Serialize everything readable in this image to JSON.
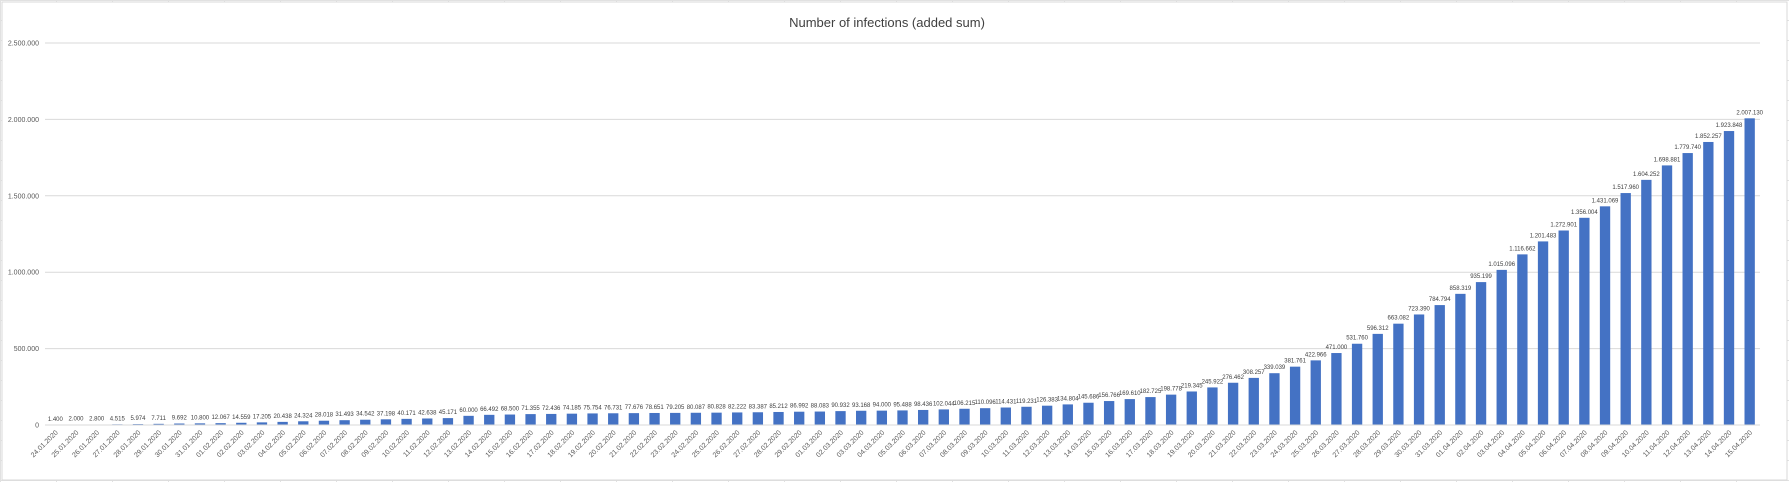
{
  "chart_data": {
    "type": "bar",
    "title": "Number of infections (added sum)",
    "xlabel": "",
    "ylabel": "",
    "ylim": [
      0,
      2500000
    ],
    "y_ticks": [
      0,
      500000,
      1000000,
      1500000,
      2000000,
      2500000
    ],
    "y_tick_labels": [
      "0",
      "500.000",
      "1.000.000",
      "1.500.000",
      "2.000.000",
      "2.500.000"
    ],
    "grid": true,
    "legend": "none",
    "bar_color": "#4472c4",
    "categories": [
      "24.01.2020",
      "25.01.2020",
      "26.01.2020",
      "27.01.2020",
      "28.01.2020",
      "29.01.2020",
      "30.01.2020",
      "31.01.2020",
      "01.02.2020",
      "02.02.2020",
      "03.02.2020",
      "04.02.2020",
      "05.02.2020",
      "06.02.2020",
      "07.02.2020",
      "08.02.2020",
      "09.02.2020",
      "10.02.2020",
      "11.02.2020",
      "12.02.2020",
      "13.02.2020",
      "14.02.2020",
      "15.02.2020",
      "16.02.2020",
      "17.02.2020",
      "18.02.2020",
      "19.02.2020",
      "20.02.2020",
      "21.02.2020",
      "22.02.2020",
      "23.02.2020",
      "24.02.2020",
      "25.02.2020",
      "26.02.2020",
      "27.02.2020",
      "28.02.2020",
      "29.02.2020",
      "01.03.2020",
      "02.03.2020",
      "03.03.2020",
      "04.03.2020",
      "05.03.2020",
      "06.03.2020",
      "07.03.2020",
      "08.03.2020",
      "09.03.2020",
      "10.03.2020",
      "11.03.2020",
      "12.03.2020",
      "13.03.2020",
      "14.03.2020",
      "15.03.2020",
      "16.03.2020",
      "17.03.2020",
      "18.03.2020",
      "19.03.2020",
      "20.03.2020",
      "21.03.2020",
      "22.03.2020",
      "23.03.2020",
      "24.03.2020",
      "25.03.2020",
      "26.03.2020",
      "27.03.2020",
      "28.03.2020",
      "29.03.2020",
      "30.03.2020",
      "31.03.2020",
      "01.04.2020",
      "02.04.2020",
      "03.04.2020",
      "04.04.2020",
      "05.04.2020",
      "06.04.2020",
      "07.04.2020",
      "08.04.2020",
      "09.04.2020",
      "10.04.2020",
      "11.04.2020",
      "12.04.2020",
      "13.04.2020",
      "14.04.2020",
      "15.04.2020"
    ],
    "values": [
      1400,
      2000,
      2800,
      4515,
      5974,
      7711,
      9692,
      10800,
      12067,
      14559,
      17205,
      20438,
      24324,
      28018,
      31493,
      34542,
      37198,
      40171,
      42638,
      45171,
      60000,
      66492,
      68500,
      71355,
      72436,
      74185,
      75754,
      76731,
      77676,
      78651,
      79205,
      80087,
      80828,
      82222,
      83387,
      85212,
      86992,
      88083,
      90932,
      93168,
      94000,
      95488,
      98436,
      102044,
      106215,
      110096,
      114431,
      119231,
      126383,
      134804,
      145686,
      156766,
      169610,
      182725,
      198778,
      219345,
      245922,
      276462,
      308257,
      339039,
      381761,
      422966,
      471000,
      531760,
      596312,
      663082,
      723390,
      784794,
      858319,
      935199,
      1015096,
      1116662,
      1201483,
      1272901,
      1356004,
      1431069,
      1517960,
      1604252,
      1698881,
      1779740,
      1852257,
      1923848,
      2007130
    ],
    "value_labels": [
      "1.400",
      "2.000",
      "2.800",
      "4.515",
      "5.974",
      "7.711",
      "9.692",
      "10.800",
      "12.067",
      "14.559",
      "17.205",
      "20.438",
      "24.324",
      "28.018",
      "31.493",
      "34.542",
      "37.198",
      "40.171",
      "42.638",
      "45.171",
      "60.000",
      "66.492",
      "68.500",
      "71.355",
      "72.436",
      "74.185",
      "75.754",
      "76.731",
      "77.676",
      "78.651",
      "79.205",
      "80.087",
      "80.828",
      "82.222",
      "83.387",
      "85.212",
      "86.992",
      "88.083",
      "90.932",
      "93.168",
      "94.000",
      "95.488",
      "98.436",
      "102.044",
      "106.215",
      "110.096",
      "114.431",
      "119.231",
      "126.383",
      "134.804",
      "145.686",
      "156.766",
      "169.610",
      "182.725",
      "198.778",
      "219.345",
      "245.922",
      "276.462",
      "308.257",
      "339.039",
      "381.761",
      "422.966",
      "471.000",
      "531.760",
      "596.312",
      "663.082",
      "723.390",
      "784.794",
      "858.319",
      "935.199",
      "1.015.096",
      "1.116.662",
      "1.201.483",
      "1.272.901",
      "1.356.004",
      "1.431.069",
      "1.517.960",
      "1.604.252",
      "1.698.881",
      "1.779.740",
      "1.852.257",
      "1.923.848",
      "2.007.130"
    ]
  }
}
